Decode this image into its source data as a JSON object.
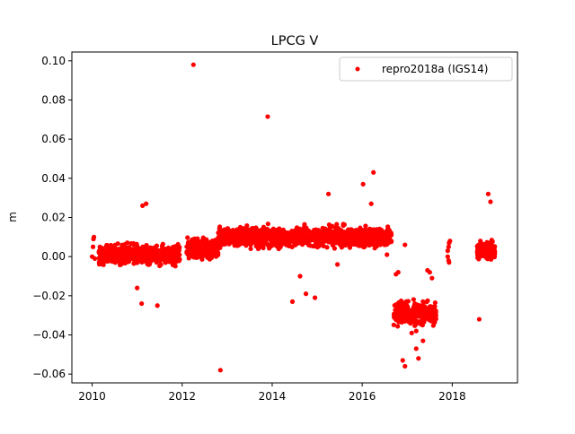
{
  "chart_data": {
    "type": "scatter",
    "title": "LPCG V",
    "xlabel": "",
    "ylabel": "m",
    "xlim": [
      2009.55,
      2019.45
    ],
    "ylim": [
      -0.0645,
      0.1045
    ],
    "xticks": [
      2010,
      2012,
      2014,
      2016,
      2018
    ],
    "yticks": [
      -0.06,
      -0.04,
      -0.02,
      0.0,
      0.02,
      0.04,
      0.06,
      0.08,
      0.1
    ],
    "xtick_labels": [
      "2010",
      "2012",
      "2014",
      "2016",
      "2018"
    ],
    "ytick_labels": [
      "−0.06",
      "−0.04",
      "−0.02",
      "0.00",
      "0.02",
      "0.04",
      "0.06",
      "0.08",
      "0.10"
    ],
    "grid": false,
    "legend_position": "top-right",
    "colors": {
      "series": "#ff0000",
      "axes": "#000000",
      "background": "#ffffff",
      "legend_border": "#cccccc"
    },
    "series": [
      {
        "name": "repro2018a (IGS14)",
        "marker": "circle",
        "segments": [
          {
            "x_start": 2010.15,
            "x_end": 2011.95,
            "mean": 0.001,
            "spread": 0.008
          },
          {
            "x_start": 2012.1,
            "x_end": 2012.8,
            "mean": 0.004,
            "spread": 0.008
          },
          {
            "x_start": 2012.8,
            "x_end": 2016.65,
            "mean": 0.01,
            "spread": 0.008
          },
          {
            "x_start": 2016.7,
            "x_end": 2017.65,
            "mean": -0.029,
            "spread": 0.01
          },
          {
            "x_start": 2018.55,
            "x_end": 2018.95,
            "mean": 0.003,
            "spread": 0.007
          }
        ],
        "points": [
          [
            2010.0,
            0.0
          ],
          [
            2010.02,
            0.005
          ],
          [
            2010.03,
            0.009
          ],
          [
            2010.04,
            0.01
          ],
          [
            2010.06,
            -0.001
          ],
          [
            2017.9,
            0.0
          ],
          [
            2017.9,
            0.003
          ],
          [
            2017.92,
            0.005
          ],
          [
            2017.93,
            0.007
          ],
          [
            2017.95,
            0.008
          ],
          [
            2017.92,
            -0.002
          ],
          [
            2017.93,
            -0.003
          ],
          [
            2012.25,
            0.098
          ],
          [
            2013.9,
            0.0715
          ],
          [
            2012.85,
            -0.058
          ],
          [
            2016.25,
            0.043
          ],
          [
            2016.02,
            0.037
          ],
          [
            2016.2,
            0.027
          ],
          [
            2015.25,
            0.032
          ],
          [
            2011.2,
            0.027
          ],
          [
            2011.12,
            0.026
          ],
          [
            2018.8,
            0.032
          ],
          [
            2018.85,
            0.028
          ],
          [
            2018.6,
            -0.032
          ],
          [
            2014.45,
            -0.023
          ],
          [
            2014.75,
            -0.019
          ],
          [
            2014.95,
            -0.021
          ],
          [
            2014.62,
            -0.01
          ],
          [
            2015.45,
            -0.004
          ],
          [
            2011.1,
            -0.024
          ],
          [
            2011.45,
            -0.025
          ],
          [
            2011.0,
            -0.016
          ],
          [
            2016.95,
            0.006
          ],
          [
            2016.55,
            0.001
          ],
          [
            2016.8,
            -0.008
          ],
          [
            2016.75,
            -0.009
          ],
          [
            2017.2,
            -0.047
          ],
          [
            2017.25,
            -0.052
          ],
          [
            2016.9,
            -0.053
          ],
          [
            2016.95,
            -0.056
          ],
          [
            2017.35,
            -0.043
          ],
          [
            2017.1,
            -0.039
          ],
          [
            2017.2,
            -0.038
          ],
          [
            2017.5,
            -0.008
          ],
          [
            2017.55,
            -0.011
          ],
          [
            2017.45,
            -0.007
          ]
        ]
      }
    ]
  }
}
